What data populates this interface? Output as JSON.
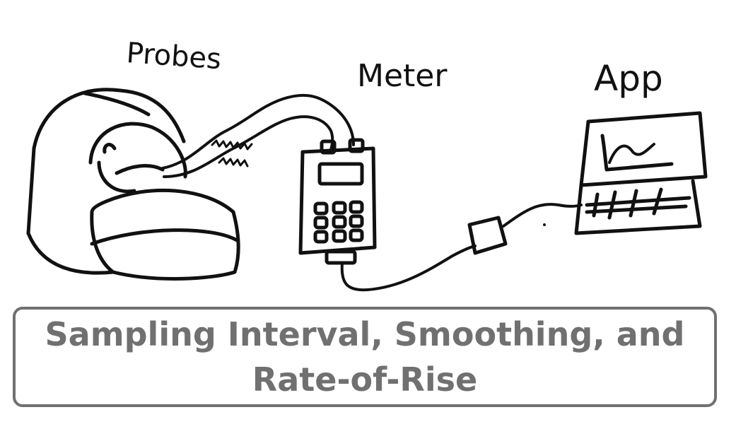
{
  "labels": {
    "probes": "Probes",
    "meter": "Meter",
    "app": "App"
  },
  "title": "Sampling Interval, Smoothing, and Rate-of-Rise",
  "colors": {
    "ink": "#111111",
    "title_text": "#707070",
    "title_border": "#707070",
    "background": "#ffffff"
  }
}
